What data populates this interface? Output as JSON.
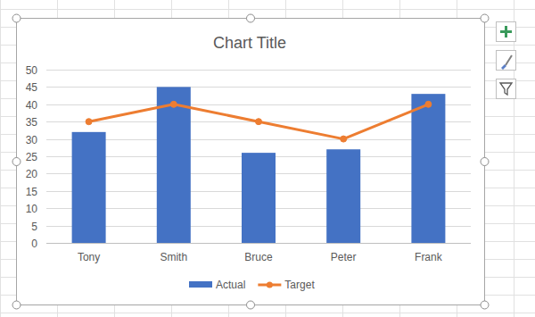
{
  "chart_data": {
    "type": "bar",
    "title": "Chart Title",
    "categories": [
      "Tony",
      "Smith",
      "Bruce",
      "Peter",
      "Frank"
    ],
    "series": [
      {
        "name": "Actual",
        "type": "bar",
        "color": "#4472c4",
        "values": [
          32,
          45,
          26,
          27,
          43
        ]
      },
      {
        "name": "Target",
        "type": "line",
        "color": "#ed7d31",
        "marker": "circle",
        "values": [
          35,
          40,
          35,
          30,
          40
        ]
      }
    ],
    "ylim": [
      0,
      50
    ],
    "yticks": [
      0,
      5,
      10,
      15,
      20,
      25,
      30,
      35,
      40,
      45,
      50
    ],
    "grid": true,
    "legend": "bottom"
  }
}
